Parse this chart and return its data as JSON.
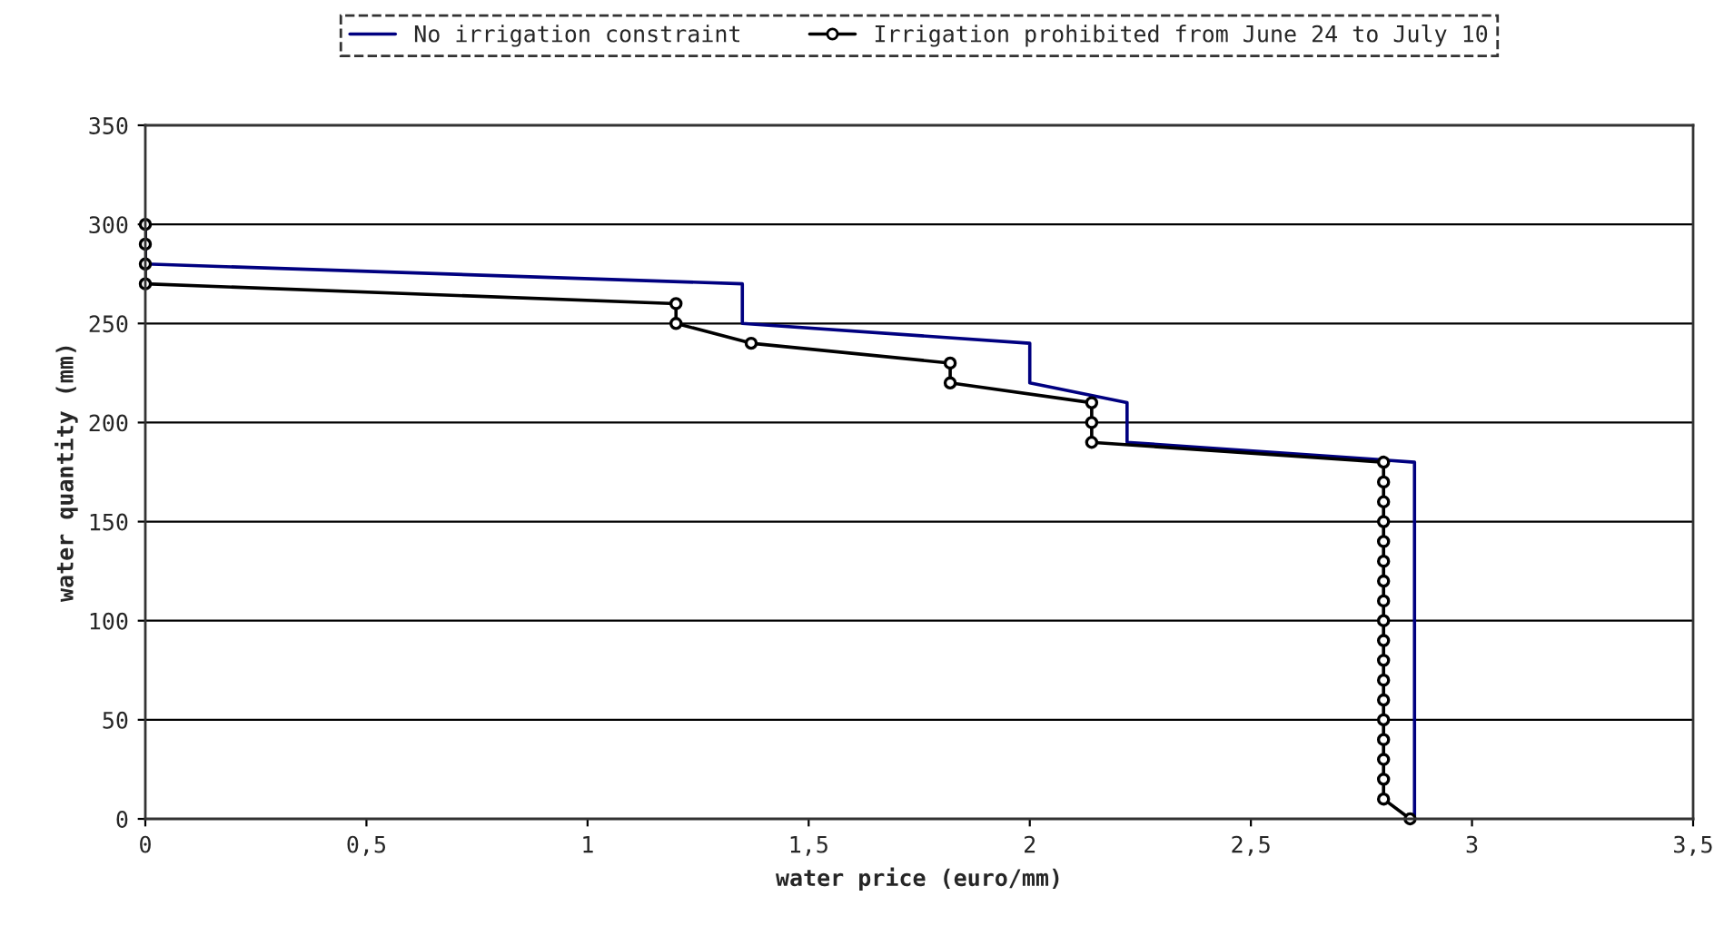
{
  "chart_data": {
    "type": "line",
    "xlabel": "water price (euro/mm)",
    "ylabel": "water quantity (mm)",
    "xlim": [
      0,
      3.5
    ],
    "xticks": [
      0,
      {
        "value": 0.5,
        "label": "0,5"
      },
      1,
      {
        "value": 1.5,
        "label": "1,5"
      },
      2,
      {
        "value": 2.5,
        "label": "2,5"
      },
      3,
      {
        "value": 3.5,
        "label": "3,5"
      }
    ],
    "ylim": [
      0,
      350
    ],
    "yticks": [
      0,
      50,
      100,
      150,
      200,
      250,
      300,
      350
    ],
    "grid": "y",
    "legend": "top",
    "series": [
      {
        "name": "No irrigation constraint",
        "color": "#000080",
        "marker": "none",
        "x": [
          0,
          0,
          0,
          1.35,
          1.35,
          1.35,
          2.0,
          2.0,
          2.0,
          2.22,
          2.22,
          2.22,
          2.87,
          2.87,
          2.87,
          2.87,
          2.87,
          2.87,
          2.87,
          2.87,
          2.87,
          2.87,
          2.87,
          2.87,
          2.87,
          2.87,
          2.87,
          2.87,
          2.87,
          2.87,
          2.87
        ],
        "values": [
          300,
          290,
          280,
          270,
          260,
          250,
          240,
          230,
          220,
          210,
          200,
          190,
          180,
          170,
          160,
          150,
          140,
          130,
          120,
          110,
          100,
          90,
          80,
          70,
          60,
          50,
          40,
          30,
          20,
          10,
          0
        ]
      },
      {
        "name": "Irrigation prohibited from June 24 to July 10",
        "color": "#000000",
        "marker": "circle",
        "x": [
          0,
          0,
          0,
          0,
          1.2,
          1.2,
          1.37,
          1.82,
          1.82,
          2.14,
          2.14,
          2.14,
          2.8,
          2.8,
          2.8,
          2.8,
          2.8,
          2.8,
          2.8,
          2.8,
          2.8,
          2.8,
          2.8,
          2.8,
          2.8,
          2.8,
          2.8,
          2.8,
          2.8,
          2.8,
          2.86
        ],
        "values": [
          300,
          290,
          280,
          270,
          260,
          250,
          240,
          230,
          220,
          210,
          200,
          190,
          180,
          170,
          160,
          150,
          140,
          130,
          120,
          110,
          100,
          90,
          80,
          70,
          60,
          50,
          40,
          30,
          20,
          10,
          0
        ]
      }
    ]
  }
}
